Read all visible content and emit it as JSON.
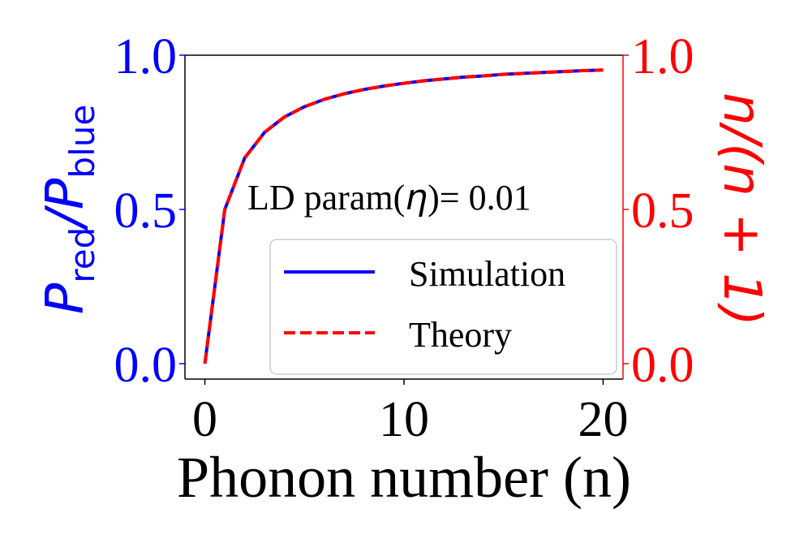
{
  "chart_data": {
    "type": "line",
    "xlabel": "Phonon number (n)",
    "ylabel_left": {
      "main": "P",
      "sub1": "red",
      "sep": "/",
      "sub2": "blue",
      "full": "P_red/P_blue"
    },
    "ylabel_right": "n/(n + 1)",
    "annotation": {
      "prefix": "LD param(",
      "symbol": "η",
      "suffix": ")= 0.01"
    },
    "xlim": [
      -1,
      21
    ],
    "ylim_left": [
      -0.05,
      1.0
    ],
    "ylim_right": [
      -0.05,
      1.0
    ],
    "xticks": [
      0,
      10,
      20
    ],
    "xtick_labels": [
      "0",
      "10",
      "20"
    ],
    "yticks_left": [
      0.0,
      0.5,
      1.0
    ],
    "ytick_labels_left": [
      "0.0",
      "0.5",
      "1.0"
    ],
    "yticks_right": [
      0.0,
      0.5,
      1.0
    ],
    "ytick_labels_right": [
      "0.0",
      "0.5",
      "1.0"
    ],
    "x": [
      0,
      1,
      2,
      3,
      4,
      5,
      6,
      7,
      8,
      9,
      10,
      11,
      12,
      13,
      14,
      15,
      16,
      17,
      18,
      19,
      20
    ],
    "series": [
      {
        "name": "Simulation",
        "style": "solid",
        "color": "#0000ff",
        "values": [
          0.0,
          0.5,
          0.667,
          0.75,
          0.8,
          0.833,
          0.857,
          0.875,
          0.889,
          0.9,
          0.909,
          0.917,
          0.923,
          0.929,
          0.933,
          0.938,
          0.941,
          0.944,
          0.947,
          0.95,
          0.952
        ]
      },
      {
        "name": "Theory",
        "style": "dashed",
        "color": "#ff0000",
        "values": [
          0.0,
          0.5,
          0.667,
          0.75,
          0.8,
          0.833,
          0.857,
          0.875,
          0.889,
          0.9,
          0.909,
          0.917,
          0.923,
          0.929,
          0.933,
          0.938,
          0.941,
          0.944,
          0.947,
          0.95,
          0.952
        ]
      }
    ],
    "legend_location": "lower-right",
    "grid": false,
    "colors": {
      "left_axis": "#0000ff",
      "right_axis": "#ff0000",
      "frame": "#000000"
    }
  }
}
